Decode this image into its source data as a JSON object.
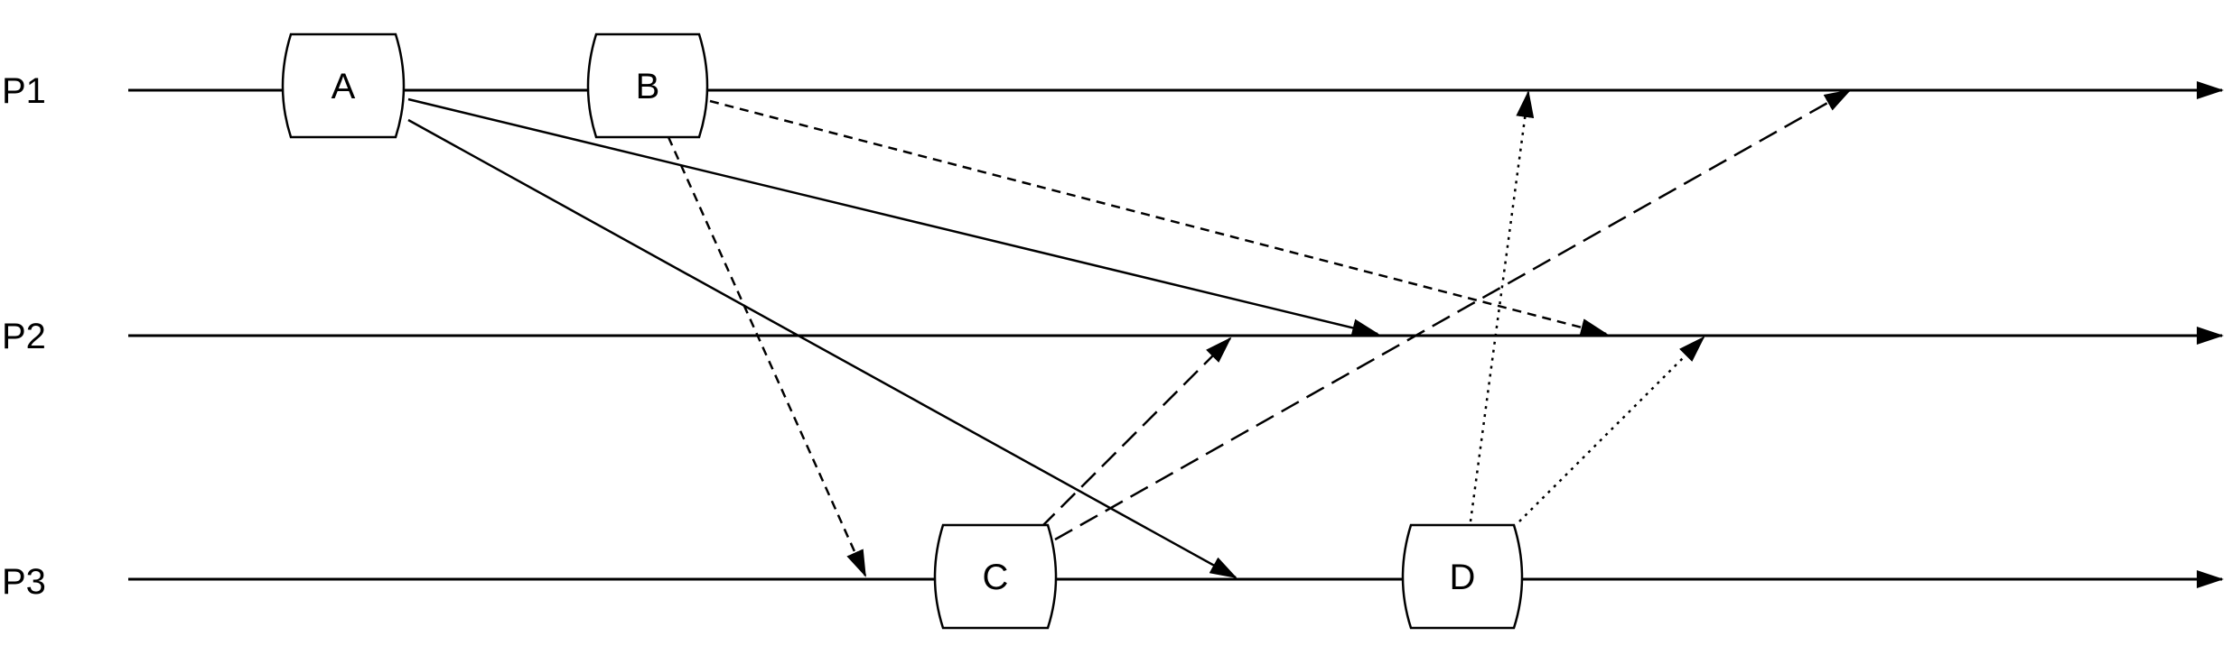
{
  "processes": [
    {
      "id": "p1",
      "label": "P1"
    },
    {
      "id": "p2",
      "label": "P2"
    },
    {
      "id": "p3",
      "label": "P3"
    }
  ],
  "events": [
    {
      "id": "a",
      "label": "A",
      "process": "p1"
    },
    {
      "id": "b",
      "label": "B",
      "process": "p1"
    },
    {
      "id": "c",
      "label": "C",
      "process": "p3"
    },
    {
      "id": "d",
      "label": "D",
      "process": "p3"
    }
  ],
  "messages": [
    {
      "from": "A",
      "to": "P2",
      "style": "solid"
    },
    {
      "from": "A",
      "to": "P3",
      "style": "solid"
    },
    {
      "from": "B",
      "to": "P2",
      "style": "short-dash"
    },
    {
      "from": "B",
      "to": "P3",
      "style": "short-dash"
    },
    {
      "from": "C",
      "to": "P2",
      "style": "long-dash"
    },
    {
      "from": "C",
      "to": "P1",
      "style": "long-dash"
    },
    {
      "from": "D",
      "to": "P1",
      "style": "dotted"
    },
    {
      "from": "D",
      "to": "P2",
      "style": "dotted"
    }
  ],
  "colors": {
    "stroke": "#000000",
    "background": "#ffffff"
  }
}
